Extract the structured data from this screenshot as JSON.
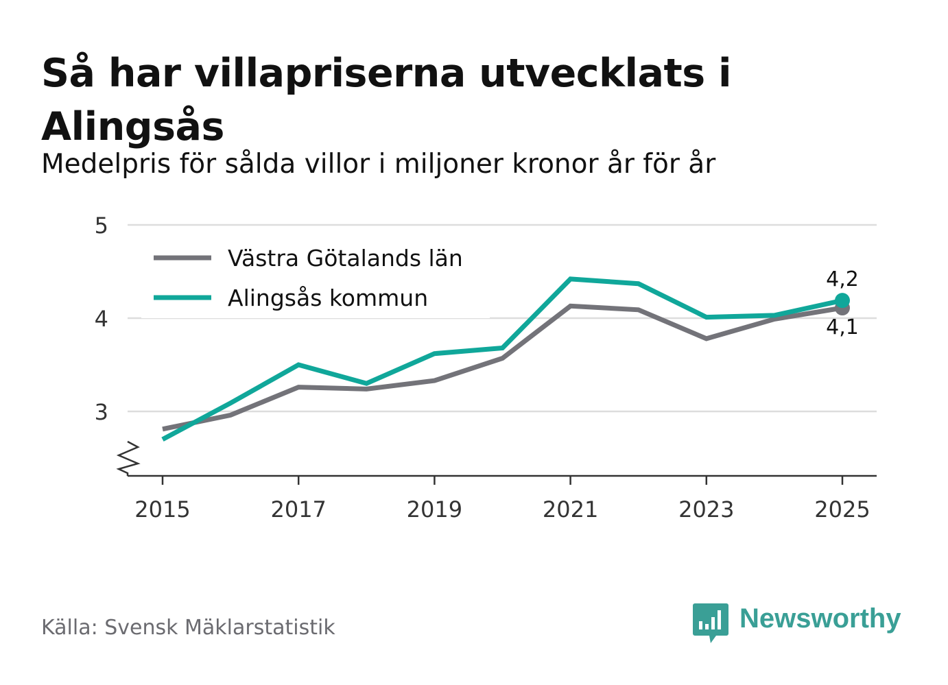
{
  "title": "Så har villapriserna utvecklats i Alingsås",
  "subtitle": "Medelpris för sålda villor i miljoner kronor år för år",
  "source": "Källa: Svensk Mäklarstatistik",
  "brand": "Newsworthy",
  "colors": {
    "series_region": "#737379",
    "series_municipality": "#10a79a",
    "grid": "#dddddd",
    "axis": "#333333",
    "brand": "#3a9f96"
  },
  "chart_data": {
    "type": "line",
    "title": "Så har villapriserna utvecklats i Alingsås",
    "xlabel": "",
    "ylabel": "",
    "x": [
      2015,
      2016,
      2017,
      2018,
      2019,
      2020,
      2021,
      2022,
      2023,
      2024,
      2025
    ],
    "xticks": [
      "2015",
      "2017",
      "2019",
      "2021",
      "2023",
      "2025"
    ],
    "yticks": [
      "3",
      "4",
      "5"
    ],
    "ylim": [
      2.3,
      5
    ],
    "axis_break": true,
    "grid": true,
    "legend_position": "top-left",
    "series": [
      {
        "name": "Västra Götalands län",
        "color": "#737379",
        "values": [
          2.81,
          2.96,
          3.26,
          3.24,
          3.33,
          3.57,
          4.13,
          4.09,
          3.78,
          3.99,
          4.11
        ],
        "end_label": "4,1"
      },
      {
        "name": "Alingsås kommun",
        "color": "#10a79a",
        "values": [
          2.7,
          3.09,
          3.5,
          3.3,
          3.62,
          3.68,
          4.42,
          4.37,
          4.01,
          4.03,
          4.19
        ],
        "end_label": "4,2"
      }
    ]
  }
}
